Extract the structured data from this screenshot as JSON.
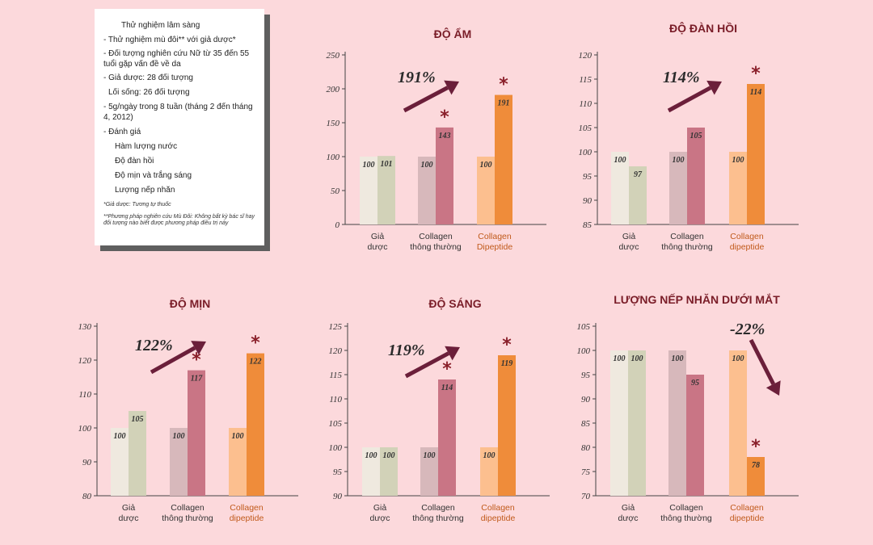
{
  "info_card": {
    "lines": [
      {
        "text": "Thử nghiệm lâm sàng",
        "indent": 22,
        "mt": 0
      },
      {
        "text": "- Thử nghiệm mù đôi** với giả dược*",
        "indent": 0,
        "mt": 5
      },
      {
        "text": "- Đối tượng nghiên cứu Nữ từ 35 đến 55 tuổi gặp vấn đề về da",
        "indent": 0,
        "mt": 4
      },
      {
        "text": "- Giả dược: 28 đối tượng",
        "indent": 0,
        "mt": 4
      },
      {
        "text": "Lối sống: 26 đối tượng",
        "indent": 6,
        "mt": 5
      },
      {
        "text": "- 5g/ngày trong 8 tuần (tháng 2 đến tháng 4, 2012)",
        "indent": 0,
        "mt": 5
      },
      {
        "text": "- Đánh giá",
        "indent": 0,
        "mt": 5
      },
      {
        "text": "Hàm lượng nước",
        "indent": 14,
        "mt": 5
      },
      {
        "text": "Độ đàn hồi",
        "indent": 14,
        "mt": 5
      },
      {
        "text": "Độ mịn và trắng sáng",
        "indent": 14,
        "mt": 5
      },
      {
        "text": "Lượng nếp nhăn",
        "indent": 14,
        "mt": 5
      }
    ],
    "notes": [
      "*Giả dược: Tương tự thuốc",
      "**Phương pháp nghiên cứu Mù Đôi: Không bất kỳ bác sĩ hay đối tượng nào biết được phương pháp điều trị này"
    ]
  },
  "colors": {
    "title": "#7a1d28",
    "arrow": "#6b1f3a",
    "star": "#8a1f2a",
    "placebo_pair": [
      "#efe9df",
      "#d2d2b8"
    ],
    "regular_pair": [
      "#d7b8bb",
      "#c97585"
    ],
    "dipeptide_pair": [
      "#fcbf8f",
      "#ef8c3a"
    ],
    "dipeptide_label": "#c15a1b"
  },
  "chart_data": [
    {
      "type": "bar",
      "title": "ĐỘ ẨM",
      "categories": [
        "Giả dược",
        "Collagen thông thường",
        "Collagen Dipeptide"
      ],
      "series": [
        {
          "values": [
            100,
            100,
            100
          ]
        },
        {
          "values": [
            101,
            143,
            191
          ]
        }
      ],
      "yticks": [
        "250",
        "200",
        "150",
        "100",
        "50",
        "0"
      ],
      "ylim": [
        0,
        250
      ],
      "significant": [
        false,
        true,
        true
      ],
      "annotation": "191%",
      "trend": "up"
    },
    {
      "type": "bar",
      "title": "ĐỘ ĐÀN HỒI",
      "categories": [
        "Giả dược",
        "Collagen thông thường",
        "Collagen dipeptide"
      ],
      "series": [
        {
          "values": [
            100,
            100,
            100
          ]
        },
        {
          "values": [
            97,
            105,
            114
          ]
        }
      ],
      "yticks": [
        "120",
        "115",
        "110",
        "105",
        "100",
        "95",
        "90",
        "85"
      ],
      "ylim": [
        85,
        120
      ],
      "significant": [
        false,
        false,
        true
      ],
      "annotation": "114%",
      "trend": "up"
    },
    {
      "type": "bar",
      "title": "ĐỘ MỊN",
      "categories": [
        "Giả dược",
        "Collagen thông thường",
        "Collagen dipeptide"
      ],
      "series": [
        {
          "values": [
            100,
            100,
            100
          ]
        },
        {
          "values": [
            105,
            117,
            122
          ]
        }
      ],
      "yticks": [
        "130",
        "120",
        "110",
        "100",
        "90",
        "80"
      ],
      "ylim": [
        80,
        130
      ],
      "significant": [
        false,
        true,
        true
      ],
      "annotation": "122%",
      "trend": "up"
    },
    {
      "type": "bar",
      "title": "ĐỘ SÁNG",
      "categories": [
        "Giả dược",
        "Collagen thông thường",
        "Collagen dipeptide"
      ],
      "series": [
        {
          "values": [
            100,
            100,
            100
          ]
        },
        {
          "values": [
            100,
            114,
            119
          ]
        }
      ],
      "yticks": [
        "125",
        "120",
        "115",
        "110",
        "105",
        "100",
        "95",
        "90"
      ],
      "ylim": [
        90,
        125
      ],
      "significant": [
        false,
        true,
        true
      ],
      "annotation": "119%",
      "trend": "up"
    },
    {
      "type": "bar",
      "title": "LƯỢNG NẾP NHĂN DƯỚI MẮT",
      "categories": [
        "Giả dược",
        "Collagen thông thường",
        "Collagen dipeptide"
      ],
      "series": [
        {
          "values": [
            100,
            100,
            100
          ]
        },
        {
          "values": [
            100,
            95,
            78
          ]
        }
      ],
      "yticks": [
        "105",
        "100",
        "95",
        "90",
        "85",
        "80",
        "75",
        "70"
      ],
      "ylim": [
        70,
        105
      ],
      "significant": [
        false,
        false,
        true
      ],
      "annotation": "-22%",
      "trend": "down"
    }
  ]
}
